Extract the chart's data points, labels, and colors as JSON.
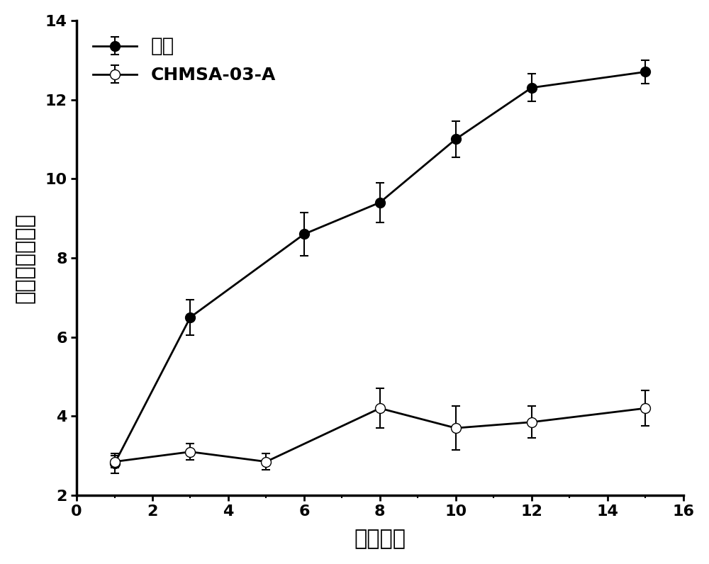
{
  "control_x": [
    1,
    3,
    6,
    8,
    10,
    12,
    15
  ],
  "control_y": [
    2.8,
    6.5,
    8.6,
    9.4,
    11.0,
    12.3,
    12.7
  ],
  "control_yerr": [
    0.25,
    0.45,
    0.55,
    0.5,
    0.45,
    0.35,
    0.3
  ],
  "treatment_x": [
    1,
    3,
    5,
    8,
    10,
    12,
    15
  ],
  "treatment_y": [
    2.85,
    3.1,
    2.85,
    4.2,
    3.7,
    3.85,
    4.2
  ],
  "treatment_yerr": [
    0.15,
    0.2,
    0.2,
    0.5,
    0.55,
    0.4,
    0.45
  ],
  "xlabel": "给药天数",
  "ylabel": "平均关节炎指数",
  "legend_control": "对照",
  "legend_treatment": "CHMSA-03-A",
  "xlim": [
    0,
    16
  ],
  "ylim": [
    2,
    14
  ],
  "yticks": [
    2,
    4,
    6,
    8,
    10,
    12,
    14
  ],
  "xticks": [
    0,
    2,
    4,
    6,
    8,
    10,
    12,
    14,
    16
  ],
  "background_color": "#ffffff",
  "line_color": "#000000",
  "marker_size": 10,
  "linewidth": 2.0
}
